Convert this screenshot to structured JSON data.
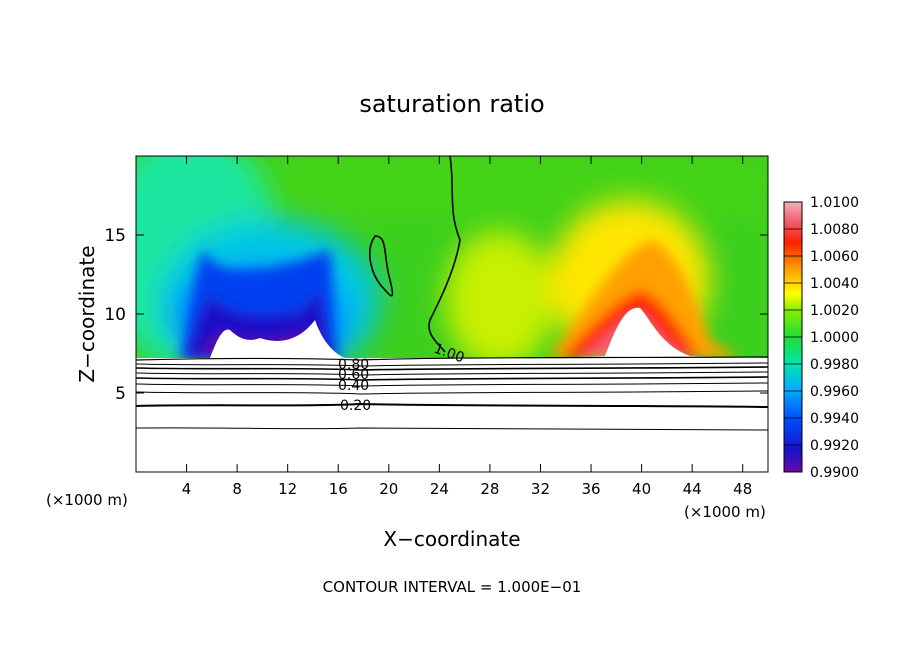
{
  "chart_data": {
    "type": "heatmap",
    "title": "saturation ratio",
    "xlabel": "X−coordinate",
    "ylabel": "Z−coordinate",
    "x_unit_left": "(×1000 m)",
    "x_unit_right": "(×1000 m)",
    "footer": "CONTOUR INTERVAL = 1.000E−01",
    "xlim": [
      0,
      50
    ],
    "ylim": [
      0,
      20
    ],
    "x_ticks": [
      4,
      8,
      12,
      16,
      20,
      24,
      28,
      32,
      36,
      40,
      44,
      48
    ],
    "y_ticks": [
      5,
      10,
      15
    ],
    "colorbar": {
      "labels": [
        "1.0100",
        "1.0080",
        "1.0060",
        "1.0040",
        "1.0020",
        "1.0000",
        "0.9980",
        "0.9960",
        "0.9940",
        "0.9920",
        "0.9900"
      ],
      "min": 0.99,
      "max": 1.01,
      "colors": [
        "#f4a0a8",
        "#ff0000",
        "#ff8c00",
        "#ffff00",
        "#44dd00",
        "#00e6b0",
        "#00aaff",
        "#0022e0",
        "#6a0aa6"
      ]
    },
    "contour_labels": [
      "1.00",
      "0.80",
      "0.60",
      "0.40",
      "0.20"
    ],
    "contour_levels_z_km": [
      7.2,
      6.8,
      6.4,
      6.0,
      5.6,
      5.2,
      4.8,
      4.3,
      2.8
    ]
  }
}
